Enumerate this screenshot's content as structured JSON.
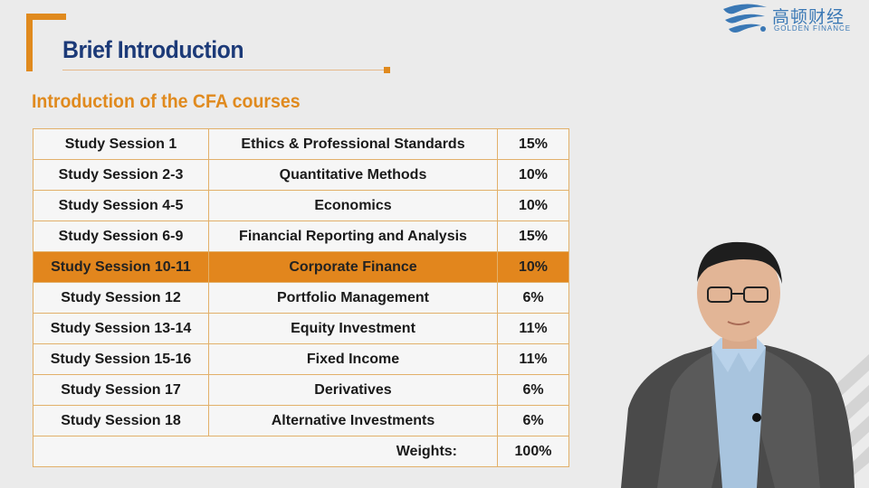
{
  "slide": {
    "title": "Brief Introduction",
    "subtitle": "Introduction of the CFA courses"
  },
  "logo": {
    "chinese": "高顿财经",
    "english": "GOLDEN FINANCE",
    "icon": "golden-finance-swirl-icon"
  },
  "table": {
    "rows": [
      {
        "session": "Study Session 1",
        "topic": "Ethics & Professional Standards",
        "weight": "15%"
      },
      {
        "session": "Study Session 2-3",
        "topic": "Quantitative Methods",
        "weight": "10%"
      },
      {
        "session": "Study Session 4-5",
        "topic": "Economics",
        "weight": "10%"
      },
      {
        "session": "Study Session 6-9",
        "topic": "Financial Reporting and Analysis",
        "weight": "15%"
      },
      {
        "session": "Study Session 10-11",
        "topic": "Corporate Finance",
        "weight": "10%",
        "highlighted": true
      },
      {
        "session": "Study Session 12",
        "topic": "Portfolio Management",
        "weight": "6%"
      },
      {
        "session": "Study Session 13-14",
        "topic": "Equity Investment",
        "weight": "11%"
      },
      {
        "session": "Study Session 15-16",
        "topic": "Fixed Income",
        "weight": "11%"
      },
      {
        "session": "Study Session 17",
        "topic": "Derivatives",
        "weight": "6%"
      },
      {
        "session": "Study Session 18",
        "topic": "Alternative Investments",
        "weight": "6%"
      }
    ],
    "total_label": "Weights:",
    "total_value": "100%"
  },
  "colors": {
    "accent": "#e08a1e",
    "title": "#1c3a78",
    "highlight_row": "#e2861d",
    "background": "#ebebeb"
  }
}
